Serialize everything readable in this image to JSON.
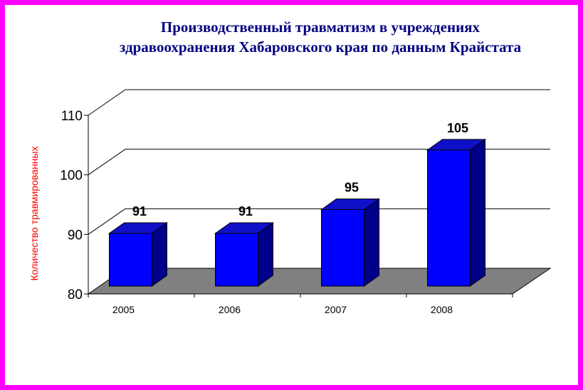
{
  "chart_data": {
    "type": "bar",
    "title_lines": [
      "Производственный травматизм в учреждениях",
      "здравоохранения Хабаровского края по данным Крайстата"
    ],
    "ylabel": "Количество травмированных",
    "categories": [
      "2005",
      "2006",
      "2007",
      "2008"
    ],
    "values": [
      91,
      91,
      95,
      105
    ],
    "ylim": [
      80,
      110
    ],
    "yticks": [
      80,
      90,
      100,
      110
    ],
    "data_labels": [
      "91",
      "91",
      "95",
      "105"
    ],
    "grid": true,
    "legend": "none",
    "colors": {
      "bar_front": "#0000ff",
      "bar_side": "#00008b",
      "bar_top": "#1010c8",
      "floor": "#808080",
      "frame_border": "#ff00ff",
      "title": "#000080",
      "ylabel": "#ff0000"
    }
  }
}
